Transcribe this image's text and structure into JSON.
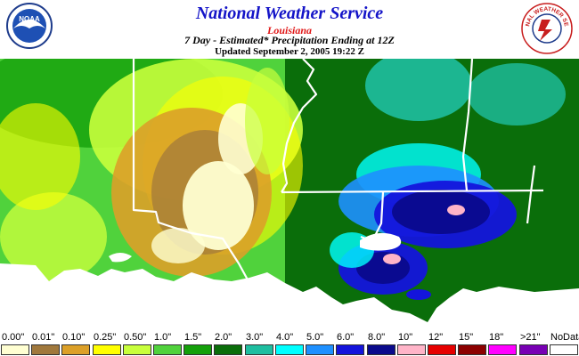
{
  "header": {
    "title": "National Weather Service",
    "region": "Louisiana",
    "subtitle": "7 Day - Estimated* Precipitation Ending at 12Z",
    "updated": "Updated September 2, 2005 19:22 Z",
    "left_logo_text": "NOAA",
    "right_logo_text": "NATIONAL WEATHER SERVICE"
  },
  "legend": {
    "items": [
      {
        "label": "0.00\"",
        "color": "#ffffd2"
      },
      {
        "label": "0.01\"",
        "color": "#a0783c"
      },
      {
        "label": "0.10\"",
        "color": "#dca028"
      },
      {
        "label": "0.25\"",
        "color": "#ffff00"
      },
      {
        "label": "0.50\"",
        "color": "#c8ff3c"
      },
      {
        "label": "1.0\"",
        "color": "#50d23c"
      },
      {
        "label": "1.5\"",
        "color": "#14a00a"
      },
      {
        "label": "2.0\"",
        "color": "#0a6e0a"
      },
      {
        "label": "3.0\"",
        "color": "#1ebea0"
      },
      {
        "label": "4.0\"",
        "color": "#00ffff"
      },
      {
        "label": "5.0\"",
        "color": "#1e90ff"
      },
      {
        "label": "6.0\"",
        "color": "#1414dc"
      },
      {
        "label": "8.0\"",
        "color": "#0a0a8c"
      },
      {
        "label": "10\"",
        "color": "#ffb4c8"
      },
      {
        "label": "12\"",
        "color": "#e60000"
      },
      {
        "label": "15\"",
        "color": "#8c0000"
      },
      {
        "label": "18\"",
        "color": "#ff00ff"
      },
      {
        "label": ">21\"",
        "color": "#7800b4"
      },
      {
        "label": "NoData",
        "color": "#ffffff"
      }
    ]
  }
}
